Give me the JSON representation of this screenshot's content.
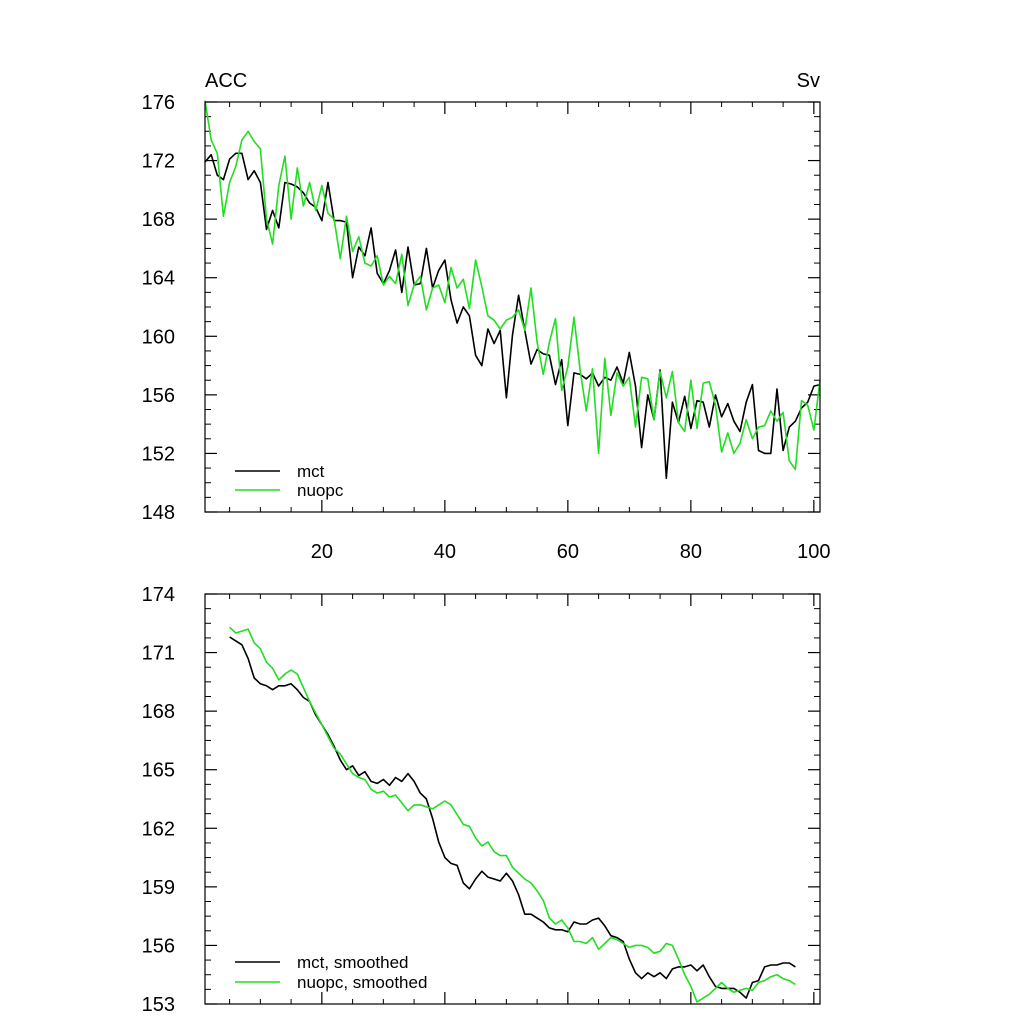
{
  "chart_data": [
    {
      "type": "line",
      "title_left": "ACC",
      "title_right": "Sv",
      "xlim": [
        1,
        101
      ],
      "ylim": [
        148,
        176
      ],
      "y_ticks": [
        148,
        152,
        156,
        160,
        164,
        168,
        172,
        176
      ],
      "x_ticks": [
        20,
        40,
        60,
        80,
        100
      ],
      "x_ticks_labeled": true,
      "legend_position": "bottom-left",
      "colors": {
        "mct": "#000000",
        "nuopc": "#22dd22"
      },
      "series": [
        {
          "name": "mct",
          "x": [
            1,
            2,
            3,
            4,
            5,
            6,
            7,
            8,
            9,
            10,
            11,
            12,
            13,
            14,
            15,
            16,
            17,
            18,
            19,
            20,
            21,
            22,
            23,
            24,
            25,
            26,
            27,
            28,
            29,
            30,
            31,
            32,
            33,
            34,
            35,
            36,
            37,
            38,
            39,
            40,
            41,
            42,
            43,
            44,
            45,
            46,
            47,
            48,
            49,
            50,
            51,
            52,
            53,
            54,
            55,
            56,
            57,
            58,
            59,
            60,
            61,
            62,
            63,
            64,
            65,
            66,
            67,
            68,
            69,
            70,
            71,
            72,
            73,
            74,
            75,
            76,
            77,
            78,
            79,
            80,
            81,
            82,
            83,
            84,
            85,
            86,
            87,
            88,
            89,
            90,
            91,
            92,
            93,
            94,
            95,
            96,
            97,
            98,
            99,
            100,
            101
          ],
          "values": [
            171.9,
            172.4,
            171.0,
            170.7,
            172.1,
            172.5,
            172.5,
            170.7,
            171.3,
            170.5,
            167.3,
            168.6,
            167.4,
            170.5,
            170.4,
            170.2,
            169.8,
            169.1,
            168.8,
            167.9,
            170.5,
            167.9,
            167.9,
            167.8,
            164.0,
            166.1,
            165.5,
            167.4,
            164.3,
            163.6,
            164.5,
            165.9,
            163.0,
            166.1,
            163.5,
            163.6,
            166.0,
            163.3,
            164.5,
            165.2,
            162.5,
            160.9,
            162.0,
            161.4,
            158.7,
            158.0,
            160.5,
            159.5,
            160.4,
            155.8,
            160.1,
            162.8,
            160.4,
            158.1,
            159.1,
            158.8,
            158.7,
            156.7,
            158.4,
            153.9,
            157.5,
            157.4,
            157.1,
            157.5,
            156.6,
            157.2,
            157.0,
            157.9,
            156.8,
            158.9,
            156.6,
            152.4,
            156.0,
            154.3,
            157.7,
            150.3,
            155.5,
            154.1,
            155.9,
            153.7,
            155.6,
            155.5,
            153.8,
            156.0,
            154.5,
            155.4,
            154.2,
            153.5,
            155.5,
            156.7,
            152.2,
            152.0,
            152.0,
            156.4,
            152.2,
            153.8,
            154.2,
            155.1,
            155.5,
            156.6,
            156.7
          ]
        },
        {
          "name": "nuopc",
          "x": [
            1,
            2,
            3,
            4,
            5,
            6,
            7,
            8,
            9,
            10,
            11,
            12,
            13,
            14,
            15,
            16,
            17,
            18,
            19,
            20,
            21,
            22,
            23,
            24,
            25,
            26,
            27,
            28,
            29,
            30,
            31,
            32,
            33,
            34,
            35,
            36,
            37,
            38,
            39,
            40,
            41,
            42,
            43,
            44,
            45,
            46,
            47,
            48,
            49,
            50,
            51,
            52,
            53,
            54,
            55,
            56,
            57,
            58,
            59,
            60,
            61,
            62,
            63,
            64,
            65,
            66,
            67,
            68,
            69,
            70,
            71,
            72,
            73,
            74,
            75,
            76,
            77,
            78,
            79,
            80,
            81,
            82,
            83,
            84,
            85,
            86,
            87,
            88,
            89,
            90,
            91,
            92,
            93,
            94,
            95,
            96,
            97,
            98,
            99,
            100,
            101
          ],
          "values": [
            176.1,
            173.4,
            172.5,
            168.2,
            170.5,
            171.6,
            173.4,
            174.0,
            173.3,
            172.8,
            168.0,
            166.3,
            170.3,
            172.3,
            168.0,
            171.5,
            168.9,
            170.5,
            168.6,
            170.3,
            168.4,
            168.0,
            165.3,
            168.2,
            165.8,
            166.8,
            165.0,
            164.8,
            165.5,
            163.5,
            164.1,
            163.6,
            165.6,
            162.1,
            163.5,
            164.1,
            161.8,
            163.3,
            163.5,
            162.3,
            164.7,
            163.3,
            163.9,
            161.9,
            165.2,
            163.4,
            161.4,
            161.1,
            160.5,
            161.1,
            161.3,
            161.8,
            160.4,
            163.3,
            159.6,
            157.4,
            159.6,
            161.2,
            156.3,
            157.9,
            161.3,
            157.7,
            154.9,
            157.8,
            152.0,
            158.5,
            154.6,
            157.5,
            156.6,
            157.2,
            153.8,
            157.2,
            157.1,
            154.3,
            157.6,
            155.8,
            157.6,
            154.1,
            153.5,
            157.0,
            153.7,
            156.8,
            156.9,
            155.3,
            152.1,
            153.4,
            152.0,
            152.7,
            154.3,
            153.0,
            153.8,
            153.9,
            154.9,
            154.2,
            154.8,
            151.5,
            150.9,
            155.6,
            155.3,
            153.6,
            157.0
          ]
        }
      ]
    },
    {
      "type": "line",
      "xlim": [
        1,
        101
      ],
      "ylim": [
        153,
        174
      ],
      "y_ticks": [
        153,
        156,
        159,
        162,
        165,
        168,
        171,
        174
      ],
      "x_ticks": [
        20,
        40,
        60,
        80,
        100
      ],
      "x_ticks_labeled": false,
      "legend_position": "bottom-left",
      "colors": {
        "mct, smoothed": "#000000",
        "nuopc, smoothed": "#22dd22"
      },
      "series": [
        {
          "name": "mct, smoothed",
          "x": [
            5,
            6,
            7,
            8,
            9,
            10,
            11,
            12,
            13,
            14,
            15,
            16,
            17,
            18,
            19,
            20,
            21,
            22,
            23,
            24,
            25,
            26,
            27,
            28,
            29,
            30,
            31,
            32,
            33,
            34,
            35,
            36,
            37,
            38,
            39,
            40,
            41,
            42,
            43,
            44,
            45,
            46,
            47,
            48,
            49,
            50,
            51,
            52,
            53,
            54,
            55,
            56,
            57,
            58,
            59,
            60,
            61,
            62,
            63,
            64,
            65,
            66,
            67,
            68,
            69,
            70,
            71,
            72,
            73,
            74,
            75,
            76,
            77,
            78,
            79,
            80,
            81,
            82,
            83,
            84,
            85,
            86,
            87,
            88,
            89,
            90,
            91,
            92,
            93,
            94,
            95,
            96,
            97
          ],
          "values": [
            171.8,
            171.6,
            171.4,
            170.7,
            169.7,
            169.4,
            169.3,
            169.1,
            169.3,
            169.3,
            169.4,
            169.1,
            168.7,
            168.5,
            167.8,
            167.3,
            166.8,
            166.2,
            165.5,
            165.0,
            165.2,
            164.7,
            164.9,
            164.4,
            164.3,
            164.5,
            164.2,
            164.6,
            164.4,
            164.8,
            164.4,
            163.8,
            163.5,
            162.5,
            161.3,
            160.5,
            160.2,
            160.1,
            159.2,
            158.9,
            159.4,
            159.8,
            159.5,
            159.4,
            159.3,
            159.7,
            159.3,
            158.6,
            157.6,
            157.6,
            157.4,
            157.2,
            156.9,
            156.8,
            156.8,
            156.7,
            157.2,
            157.1,
            157.1,
            157.3,
            157.4,
            157.0,
            156.5,
            156.4,
            156.2,
            155.3,
            154.6,
            154.3,
            154.6,
            154.4,
            154.6,
            154.3,
            154.8,
            154.9,
            154.9,
            155.0,
            154.7,
            155.0,
            154.4,
            153.9,
            153.8,
            153.8,
            153.8,
            153.6,
            153.3,
            154.1,
            154.2,
            154.9,
            155.0,
            155.0,
            155.1,
            155.1,
            154.9
          ]
        },
        {
          "name": "nuopc, smoothed",
          "x": [
            5,
            6,
            7,
            8,
            9,
            10,
            11,
            12,
            13,
            14,
            15,
            16,
            17,
            18,
            19,
            20,
            21,
            22,
            23,
            24,
            25,
            26,
            27,
            28,
            29,
            30,
            31,
            32,
            33,
            34,
            35,
            36,
            37,
            38,
            39,
            40,
            41,
            42,
            43,
            44,
            45,
            46,
            47,
            48,
            49,
            50,
            51,
            52,
            53,
            54,
            55,
            56,
            57,
            58,
            59,
            60,
            61,
            62,
            63,
            64,
            65,
            66,
            67,
            68,
            69,
            70,
            71,
            72,
            73,
            74,
            75,
            76,
            77,
            78,
            79,
            80,
            81,
            82,
            83,
            84,
            85,
            86,
            87,
            88,
            89,
            90,
            91,
            92,
            93,
            94,
            95,
            96,
            97
          ],
          "values": [
            172.3,
            172.0,
            172.1,
            172.2,
            171.5,
            171.2,
            170.5,
            170.2,
            169.6,
            169.9,
            170.1,
            169.9,
            169.2,
            168.5,
            167.9,
            167.3,
            166.7,
            166.1,
            165.8,
            165.3,
            164.8,
            164.6,
            164.5,
            164.0,
            163.8,
            163.9,
            163.6,
            163.7,
            163.3,
            162.9,
            163.2,
            163.2,
            163.1,
            163.0,
            163.2,
            163.4,
            163.2,
            162.7,
            162.2,
            162.1,
            161.5,
            161.1,
            161.3,
            160.8,
            160.6,
            160.6,
            160.0,
            159.7,
            159.4,
            159.2,
            158.8,
            158.3,
            157.4,
            157.1,
            157.3,
            156.9,
            156.2,
            156.2,
            156.1,
            156.4,
            155.8,
            156.1,
            156.4,
            156.3,
            156.1,
            155.9,
            156.0,
            156.0,
            155.9,
            155.6,
            155.7,
            156.1,
            156.0,
            155.3,
            154.5,
            153.9,
            153.1,
            153.3,
            153.5,
            153.8,
            154.1,
            153.8,
            153.6,
            153.7,
            153.8,
            153.7,
            154.1,
            154.2,
            154.4,
            154.5,
            154.3,
            154.2,
            154.0
          ]
        }
      ]
    }
  ]
}
